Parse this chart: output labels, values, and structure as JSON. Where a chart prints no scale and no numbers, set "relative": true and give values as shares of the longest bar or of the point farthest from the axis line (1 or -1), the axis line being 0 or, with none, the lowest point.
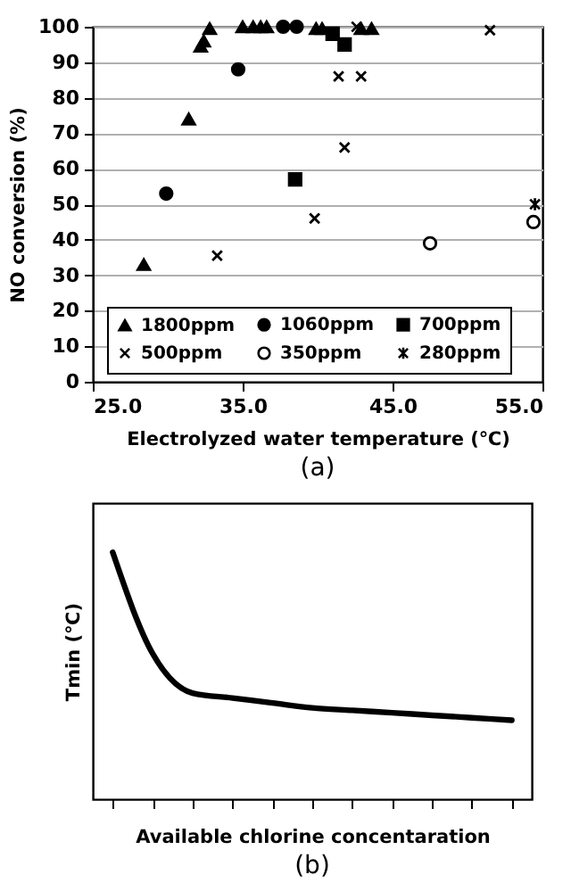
{
  "chart_data": [
    {
      "type": "scatter",
      "xlabel": "Electrolyzed water temperature (℃)",
      "ylabel": "NO conversion (%)",
      "annotations": [
        "(a)"
      ],
      "xlim": [
        25,
        55
      ],
      "xticks": [
        {
          "value": 25,
          "label": "25.0"
        },
        {
          "value": 35,
          "label": "35.0"
        },
        {
          "value": 45,
          "label": "45.0"
        },
        {
          "value": 55,
          "label": "55.0"
        }
      ],
      "ylim": [
        0,
        100
      ],
      "yticks": [
        0,
        10,
        20,
        30,
        40,
        50,
        60,
        70,
        80,
        90,
        100
      ],
      "grid": "y",
      "legend": "bottom",
      "series": [
        {
          "name": "1800ppm",
          "color": "#000000",
          "marker": "triangle",
          "x": [
            28.4,
            31.4,
            32.2,
            32.4,
            32.8,
            35.0,
            35.7,
            36.2,
            36.6,
            39.9,
            40.3,
            42.9,
            43.6
          ],
          "values": [
            33,
            74,
            94.5,
            96,
            99.5,
            100,
            100,
            100,
            100,
            99.5,
            99.5,
            99.5,
            99.5
          ]
        },
        {
          "name": "1060ppm",
          "color": "#000000",
          "marker": "circle",
          "x": [
            29.9,
            34.7,
            37.7,
            38.6
          ],
          "values": [
            53,
            88,
            100,
            100
          ]
        },
        {
          "name": "700ppm",
          "color": "#000000",
          "marker": "square",
          "x": [
            38.5,
            41.0,
            41.8
          ],
          "values": [
            57,
            98,
            95
          ]
        },
        {
          "name": "500ppm",
          "color": "#000000",
          "marker": "cross",
          "x": [
            33.3,
            39.8,
            41.4,
            41.8,
            42.9,
            42.6,
            51.5
          ],
          "values": [
            35.5,
            46,
            86,
            66,
            86,
            100,
            99
          ]
        },
        {
          "name": "350ppm",
          "color": "#000000",
          "marker": "circle",
          "x": [
            47.5,
            54.4
          ],
          "values": [
            39,
            45
          ]
        },
        {
          "name": "280ppm",
          "color": "#000000",
          "marker": "cross",
          "x": [
            54.5
          ],
          "values": [
            50
          ]
        }
      ]
    },
    {
      "type": "line",
      "relative": true,
      "xlabel": "Available chlorine concentaration",
      "ylabel": "Tmin (℃)",
      "annotations": [
        "(b)"
      ],
      "categories": [
        null,
        null,
        null,
        null,
        null,
        null,
        null,
        null,
        null,
        null,
        null
      ],
      "series": [
        {
          "color": "#000000",
          "values": [
            1.0,
            0.59,
            0.43,
            0.41,
            0.39,
            0.37,
            0.36,
            0.35,
            0.34,
            0.33,
            0.32
          ]
        }
      ]
    }
  ]
}
